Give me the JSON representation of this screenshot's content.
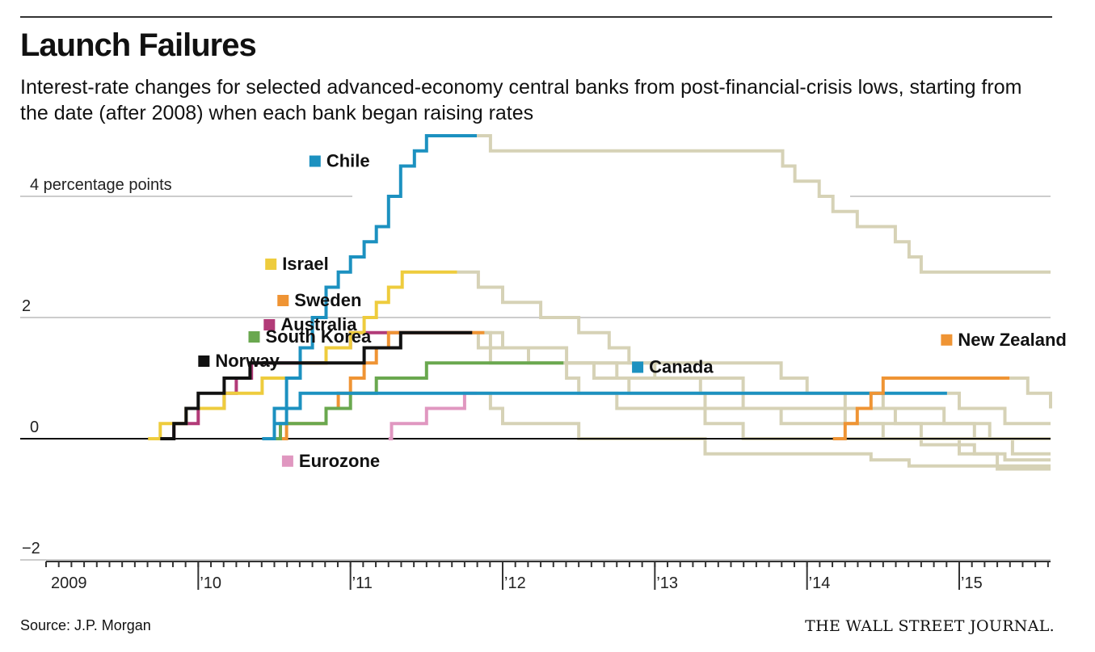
{
  "title": "Launch Failures",
  "subtitle": "Interest-rate changes for selected advanced-economy central banks from post-financial-crisis lows, starting from the date (after 2008) when each bank began raising rates",
  "source": "Source: J.P. Morgan",
  "brand": "THE WALL STREET JOURNAL.",
  "chart_data": {
    "type": "line",
    "step": true,
    "x_unit": "year",
    "y_unit": "percentage points",
    "ylim": [
      -2,
      5
    ],
    "xlim": [
      2009.0,
      2015.6
    ],
    "y_ticks": [
      {
        "value": 4,
        "label": "4 percentage points"
      },
      {
        "value": 2,
        "label": "2"
      },
      {
        "value": 0,
        "label": "0"
      },
      {
        "value": -2,
        "label": "−2"
      }
    ],
    "x_ticks": [
      {
        "value": 2009,
        "label": "2009"
      },
      {
        "value": 2010,
        "label": "’10"
      },
      {
        "value": 2011,
        "label": "’11"
      },
      {
        "value": 2012,
        "label": "’12"
      },
      {
        "value": 2013,
        "label": "’13"
      },
      {
        "value": 2014,
        "label": "’14"
      },
      {
        "value": 2015,
        "label": "’15"
      }
    ],
    "colors": {
      "later_path": "#d6d2b6",
      "zero_line": "#111111",
      "grid": "#cccccc"
    },
    "series": [
      {
        "name": "Australia",
        "color": "#b23b78",
        "label_at": [
          2010.43,
          1.8
        ],
        "steps": [
          [
            2009.75,
            0
          ],
          [
            2009.84,
            0.25
          ],
          [
            2010.0,
            0.5
          ],
          [
            2010.17,
            0.75
          ],
          [
            2010.25,
            1.0
          ],
          [
            2010.35,
            1.25
          ],
          [
            2010.84,
            1.5
          ],
          [
            2011.0,
            1.75
          ],
          [
            2011.8,
            1.75
          ]
        ],
        "after": [
          [
            2011.8,
            1.75
          ],
          [
            2011.84,
            1.5
          ],
          [
            2011.92,
            1.25
          ],
          [
            2012.42,
            1.0
          ],
          [
            2012.5,
            0.75
          ],
          [
            2012.75,
            0.5
          ],
          [
            2013.33,
            0.25
          ],
          [
            2013.58,
            0.0
          ],
          [
            2015.1,
            0.0
          ],
          [
            2015.35,
            -0.25
          ],
          [
            2015.6,
            -0.25
          ]
        ]
      },
      {
        "name": "Israel",
        "color": "#eecc3d",
        "label_at": [
          2010.44,
          2.8
        ],
        "steps": [
          [
            2009.67,
            0
          ],
          [
            2009.75,
            0.25
          ],
          [
            2009.92,
            0.5
          ],
          [
            2010.17,
            0.75
          ],
          [
            2010.42,
            1.0
          ],
          [
            2010.67,
            1.25
          ],
          [
            2010.84,
            1.5
          ],
          [
            2011.0,
            1.75
          ],
          [
            2011.09,
            2.0
          ],
          [
            2011.17,
            2.25
          ],
          [
            2011.25,
            2.5
          ],
          [
            2011.34,
            2.75
          ],
          [
            2011.7,
            2.75
          ]
        ],
        "after": [
          [
            2011.7,
            2.75
          ],
          [
            2011.84,
            2.5
          ],
          [
            2012.0,
            2.25
          ],
          [
            2012.25,
            2.0
          ],
          [
            2012.5,
            1.75
          ],
          [
            2012.7,
            1.5
          ],
          [
            2012.83,
            1.25
          ],
          [
            2013.0,
            1.0
          ],
          [
            2013.3,
            0.75
          ],
          [
            2013.58,
            0.5
          ],
          [
            2013.83,
            0.25
          ],
          [
            2015.2,
            0.0
          ],
          [
            2015.6,
            0.0
          ]
        ]
      },
      {
        "name": "Chile",
        "color": "#1c91c0",
        "label_at": [
          2010.73,
          4.5
        ],
        "steps": [
          [
            2010.43,
            0
          ],
          [
            2010.5,
            0.5
          ],
          [
            2010.58,
            1.0
          ],
          [
            2010.67,
            1.5
          ],
          [
            2010.75,
            2.0
          ],
          [
            2010.84,
            2.5
          ],
          [
            2010.92,
            2.75
          ],
          [
            2011.0,
            3.0
          ],
          [
            2011.09,
            3.25
          ],
          [
            2011.17,
            3.5
          ],
          [
            2011.25,
            4.0
          ],
          [
            2011.33,
            4.5
          ],
          [
            2011.42,
            4.75
          ],
          [
            2011.5,
            5.0
          ],
          [
            2011.83,
            5.0
          ]
        ],
        "after": [
          [
            2011.83,
            5.0
          ],
          [
            2011.92,
            4.75
          ],
          [
            2013.75,
            4.75
          ],
          [
            2013.84,
            4.5
          ],
          [
            2013.92,
            4.25
          ],
          [
            2014.08,
            4.0
          ],
          [
            2014.17,
            3.75
          ],
          [
            2014.33,
            3.5
          ],
          [
            2014.58,
            3.25
          ],
          [
            2014.67,
            3.0
          ],
          [
            2014.75,
            2.75
          ],
          [
            2015.6,
            2.75
          ]
        ]
      },
      {
        "name": "Sweden",
        "color": "#ef9434",
        "label_at": [
          2010.52,
          2.2
        ],
        "steps": [
          [
            2010.5,
            0
          ],
          [
            2010.58,
            0.25
          ],
          [
            2010.84,
            0.5
          ],
          [
            2010.92,
            0.75
          ],
          [
            2011.0,
            1.0
          ],
          [
            2011.09,
            1.25
          ],
          [
            2011.17,
            1.5
          ],
          [
            2011.25,
            1.75
          ],
          [
            2011.88,
            1.75
          ]
        ],
        "after": [
          [
            2011.88,
            1.75
          ],
          [
            2012.0,
            1.5
          ],
          [
            2012.42,
            1.25
          ],
          [
            2012.75,
            1.0
          ],
          [
            2013.58,
            0.75
          ],
          [
            2014.25,
            0.25
          ],
          [
            2014.5,
            0.0
          ],
          [
            2014.75,
            -0.1
          ],
          [
            2015.1,
            -0.25
          ],
          [
            2015.3,
            -0.35
          ],
          [
            2015.6,
            -0.35
          ]
        ]
      },
      {
        "name": "South Korea",
        "color": "#6aa84f",
        "label_at": [
          2010.33,
          1.6
        ],
        "steps": [
          [
            2010.5,
            0
          ],
          [
            2010.54,
            0.25
          ],
          [
            2010.84,
            0.5
          ],
          [
            2011.0,
            0.75
          ],
          [
            2011.17,
            1.0
          ],
          [
            2011.5,
            1.25
          ],
          [
            2012.0,
            1.25
          ],
          [
            2012.4,
            1.25
          ]
        ],
        "after": [
          [
            2012.4,
            1.25
          ],
          [
            2012.6,
            1.0
          ],
          [
            2012.83,
            0.75
          ],
          [
            2013.33,
            0.5
          ],
          [
            2014.58,
            0.25
          ],
          [
            2014.75,
            0.0
          ],
          [
            2015.0,
            -0.25
          ],
          [
            2015.25,
            -0.5
          ],
          [
            2015.6,
            -0.5
          ]
        ]
      },
      {
        "name": "Norway",
        "color": "#111111",
        "label_at": [
          2010.0,
          1.2
        ],
        "steps": [
          [
            2009.75,
            0
          ],
          [
            2009.84,
            0.25
          ],
          [
            2009.92,
            0.5
          ],
          [
            2010.0,
            0.75
          ],
          [
            2010.17,
            1.0
          ],
          [
            2010.34,
            1.25
          ],
          [
            2011.09,
            1.5
          ],
          [
            2011.33,
            1.75
          ],
          [
            2011.8,
            1.75
          ]
        ],
        "after": [
          [
            2011.8,
            1.75
          ],
          [
            2011.92,
            1.5
          ],
          [
            2012.17,
            1.25
          ],
          [
            2013.83,
            1.0
          ],
          [
            2014.0,
            0.75
          ],
          [
            2014.5,
            0.5
          ],
          [
            2014.9,
            0.25
          ],
          [
            2015.1,
            0.0
          ],
          [
            2015.6,
            0.0
          ]
        ]
      },
      {
        "name": "Eurozone",
        "color": "#e097c0",
        "label_at": [
          2010.55,
          -0.45
        ],
        "steps": [
          [
            2011.25,
            0
          ],
          [
            2011.27,
            0.25
          ],
          [
            2011.5,
            0.5
          ],
          [
            2011.75,
            0.75
          ],
          [
            2011.83,
            0.75
          ]
        ],
        "after": [
          [
            2011.83,
            0.75
          ],
          [
            2011.92,
            0.5
          ],
          [
            2012.0,
            0.25
          ],
          [
            2012.5,
            0.0
          ],
          [
            2013.33,
            -0.25
          ],
          [
            2014.42,
            -0.35
          ],
          [
            2014.67,
            -0.45
          ],
          [
            2015.6,
            -0.45
          ]
        ]
      },
      {
        "name": "Canada",
        "color": "#1c91c0",
        "label_at": [
          2012.85,
          1.1
        ],
        "steps": [
          [
            2010.42,
            0
          ],
          [
            2010.5,
            0.25
          ],
          [
            2010.58,
            0.5
          ],
          [
            2010.67,
            0.75
          ],
          [
            2011.0,
            0.75
          ],
          [
            2013.0,
            0.75
          ],
          [
            2014.0,
            0.75
          ],
          [
            2014.92,
            0.75
          ]
        ],
        "after": [
          [
            2014.92,
            0.75
          ],
          [
            2015.0,
            0.5
          ],
          [
            2015.3,
            0.25
          ],
          [
            2015.6,
            0.25
          ]
        ]
      },
      {
        "name": "New Zealand",
        "color": "#ef9434",
        "label_at": [
          2014.88,
          1.55
        ],
        "steps": [
          [
            2014.17,
            0
          ],
          [
            2014.25,
            0.25
          ],
          [
            2014.33,
            0.5
          ],
          [
            2014.42,
            0.75
          ],
          [
            2014.5,
            1.0
          ],
          [
            2014.67,
            1.0
          ],
          [
            2015.33,
            1.0
          ]
        ],
        "after": [
          [
            2015.33,
            1.0
          ],
          [
            2015.45,
            0.75
          ],
          [
            2015.6,
            0.5
          ]
        ]
      }
    ]
  }
}
